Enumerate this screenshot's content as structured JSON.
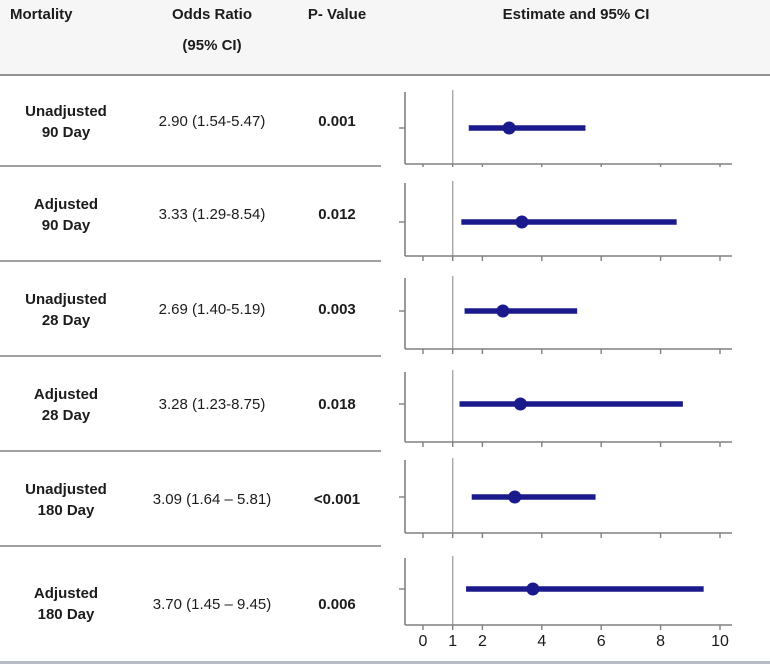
{
  "header": {
    "col_mortality": "Mortality",
    "col_odds_ratio_line1": "Odds Ratio",
    "col_odds_ratio_line2": "(95% CI)",
    "col_p_value": "P- Value",
    "col_estimate": "Estimate and 95% CI"
  },
  "rows": [
    {
      "label_line1": "Unadjusted",
      "label_line2": "90 Day",
      "odds_ratio": "2.90 (1.54-5.47)",
      "p_value": "0.001"
    },
    {
      "label_line1": "Adjusted",
      "label_line2": "90 Day",
      "odds_ratio": "3.33 (1.29-8.54)",
      "p_value": "0.012"
    },
    {
      "label_line1": "Unadjusted",
      "label_line2": "28 Day",
      "odds_ratio": "2.69 (1.40-5.19)",
      "p_value": "0.003"
    },
    {
      "label_line1": "Adjusted",
      "label_line2": "28 Day",
      "odds_ratio": "3.28 (1.23-8.75)",
      "p_value": "0.018"
    },
    {
      "label_line1": "Unadjusted",
      "label_line2": "180 Day",
      "odds_ratio": "3.09 (1.64 – 5.81)",
      "p_value": "<0.001"
    },
    {
      "label_line1": "Adjusted",
      "label_line2": "180 Day",
      "odds_ratio": "3.70 (1.45 – 9.45)",
      "p_value": "0.006"
    }
  ],
  "chart_data": {
    "type": "scatter",
    "subtype": "forest-plot",
    "title": "Estimate and 95% CI",
    "xlabel": "",
    "ylabel": "",
    "xlim": [
      -0.6,
      10.45
    ],
    "x_ticks": [
      0,
      1,
      2,
      4,
      6,
      8,
      10
    ],
    "x_tick_labels": [
      "0",
      "1",
      "2",
      "4",
      "6",
      "8",
      "10"
    ],
    "reference_line_x": 1,
    "grid": false,
    "legend": false,
    "series": [
      {
        "name": "Unadjusted 90 Day",
        "estimate": 2.9,
        "ci_low": 1.54,
        "ci_high": 5.47
      },
      {
        "name": "Adjusted 90 Day",
        "estimate": 3.33,
        "ci_low": 1.29,
        "ci_high": 8.54
      },
      {
        "name": "Unadjusted 28 Day",
        "estimate": 2.69,
        "ci_low": 1.4,
        "ci_high": 5.19
      },
      {
        "name": "Adjusted 28 Day",
        "estimate": 3.28,
        "ci_low": 1.23,
        "ci_high": 8.75
      },
      {
        "name": "Unadjusted 180 Day",
        "estimate": 3.09,
        "ci_low": 1.64,
        "ci_high": 5.81
      },
      {
        "name": "Adjusted 180 Day",
        "estimate": 3.7,
        "ci_low": 1.45,
        "ci_high": 9.45
      }
    ],
    "colors": {
      "marker_and_ci": "#1a1a8c",
      "axis": "#808080",
      "reference_line": "#a8a8a8",
      "tick_label_text": "#1a1a1a"
    }
  }
}
